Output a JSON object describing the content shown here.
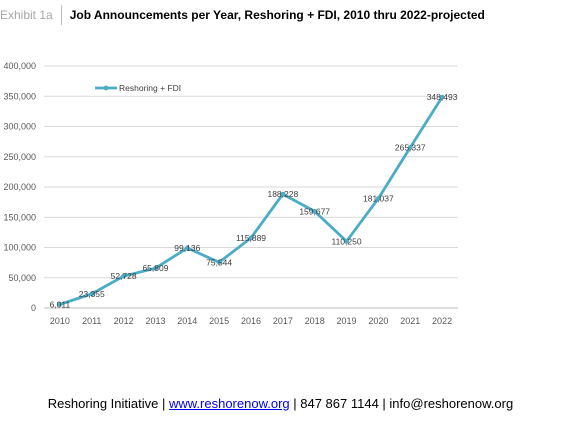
{
  "header": {
    "exhibit": "Exhibit 1a",
    "title": "Job Announcements per Year, Reshoring + FDI, 2010 thru 2022-projected"
  },
  "chart_data": {
    "type": "line",
    "title": "Job Announcements per Year, Reshoring + FDI, 2010 thru 2022-projected",
    "x": [
      "2010",
      "2011",
      "2012",
      "2013",
      "2014",
      "2015",
      "2016",
      "2017",
      "2018",
      "2019",
      "2020",
      "2021",
      "2022"
    ],
    "series": [
      {
        "name": "Reshoring + FDI",
        "values": [
          6011,
          23355,
          52728,
          65809,
          99136,
          75544,
          115889,
          188228,
          159677,
          110250,
          181037,
          265337,
          348493
        ],
        "labels": [
          "6,011",
          "23,355",
          "52,728",
          "65,809",
          "99,136",
          "75,544",
          "115,889",
          "188,228",
          "159,677",
          "110,250",
          "181,037",
          "265,337",
          "348,493"
        ]
      }
    ],
    "yticks": [
      "0",
      "50,000",
      "100,000",
      "150,000",
      "200,000",
      "250,000",
      "300,000",
      "350,000",
      "400,000"
    ],
    "ylim": [
      0,
      400000
    ],
    "grid": true,
    "legend": "top-left",
    "color": "#4bacc6"
  },
  "footer": {
    "org": "Reshoring Initiative |",
    "link": "www.reshorenow.org",
    "contact": "| 847 867 1144 | info@reshorenow.org"
  }
}
